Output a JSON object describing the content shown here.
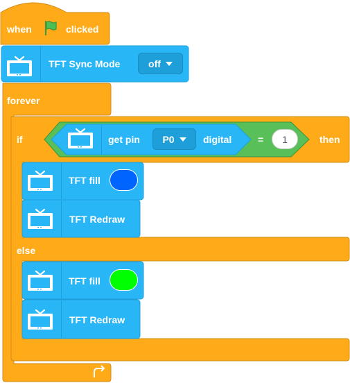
{
  "hat": {
    "when": "when",
    "clicked": "clicked",
    "flag_icon": "green-flag-icon"
  },
  "sync": {
    "label": "TFT Sync Mode",
    "value": "off"
  },
  "forever": {
    "label": "forever"
  },
  "if_block": {
    "if_label": "if",
    "then_label": "then",
    "else_label": "else",
    "condition": {
      "get_pin": "get pin",
      "pin_value": "P0",
      "digital": "digital",
      "equals": "=",
      "compare_value": "1"
    }
  },
  "then_branch": {
    "fill_label": "TFT fill",
    "fill_color": "#0064ff",
    "redraw_label": "TFT Redraw"
  },
  "else_branch": {
    "fill_label": "TFT fill",
    "fill_color": "#00ff00",
    "redraw_label": "TFT Redraw"
  },
  "colors": {
    "events": "#ffab19",
    "control": "#ffab19",
    "tft": "#29b6f6",
    "operator": "#59c059"
  }
}
